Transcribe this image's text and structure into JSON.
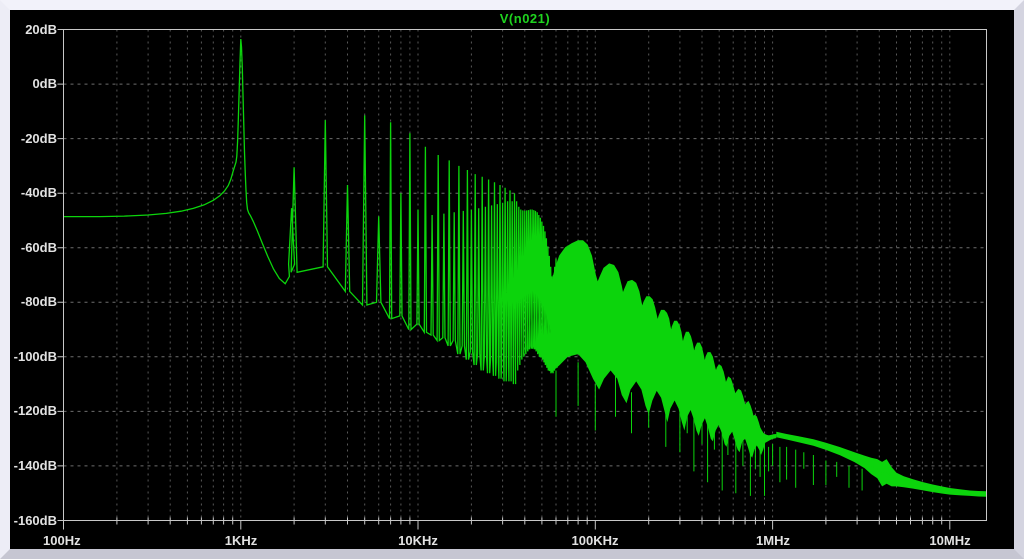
{
  "window": {
    "app": "waveform-viewer"
  },
  "colors": {
    "trace_green": "#0cd40c",
    "title_green": "#1fd31f",
    "background": "#000000",
    "grid_minor": "#585858",
    "grid_major": "#6e6e6e",
    "axis": "#c8c8c8",
    "label_text": "#e2e2e2",
    "frame": "#e9e9f3"
  },
  "chart_data": {
    "type": "line",
    "title": "V(n021)",
    "x_scale": "log",
    "x_range_hz": [
      100,
      16100000
    ],
    "y_range_db": [
      -160,
      20
    ],
    "x_tick_labels": [
      "100Hz",
      "1KHz",
      "10KHz",
      "100KHz",
      "1MHz",
      "10MHz"
    ],
    "y_tick_labels": [
      "20dB",
      "0dB",
      "-20dB",
      "-40dB",
      "-60dB",
      "-80dB",
      "-100dB",
      "-120dB",
      "-140dB",
      "-160dB"
    ],
    "legend_position": "top-center",
    "grid": "dashed",
    "series": [
      {
        "name": "V(n021)",
        "color": "#0cd40c"
      }
    ],
    "baseline_hz_db": [
      [
        100,
        -48.6
      ],
      [
        160,
        -48.6
      ],
      [
        220,
        -48.4
      ],
      [
        300,
        -48
      ],
      [
        380,
        -47.4
      ],
      [
        460,
        -46.6
      ],
      [
        540,
        -45.6
      ],
      [
        620,
        -44.3
      ],
      [
        700,
        -42.6
      ],
      [
        760,
        -41
      ],
      [
        810,
        -39.2
      ],
      [
        850,
        -37.2
      ],
      [
        880,
        -34.8
      ],
      [
        905,
        -32
      ],
      [
        925,
        -30
      ],
      [
        940,
        -28.6
      ],
      [
        950,
        -26.5
      ],
      [
        960,
        -21
      ],
      [
        970,
        -12
      ],
      [
        980,
        -2
      ],
      [
        990,
        8
      ],
      [
        1000,
        16.5
      ],
      [
        1010,
        13.5
      ],
      [
        1020,
        6
      ],
      [
        1030,
        -4
      ],
      [
        1040,
        -15
      ],
      [
        1050,
        -25
      ],
      [
        1060,
        -33
      ],
      [
        1070,
        -39
      ],
      [
        1080,
        -43.5
      ],
      [
        1092,
        -46
      ],
      [
        1110,
        -47.3
      ],
      [
        1135,
        -48.3
      ],
      [
        1175,
        -50.3
      ],
      [
        1240,
        -53.8
      ],
      [
        1320,
        -58.2
      ],
      [
        1420,
        -63.2
      ],
      [
        1530,
        -67.8
      ],
      [
        1650,
        -71.3
      ],
      [
        1780,
        -73.2
      ],
      [
        1880,
        -70.5
      ]
    ],
    "harmonic_teeth_hz_top_floor": [
      [
        1935,
        -45.5,
        -66
      ],
      [
        2000,
        -30.5,
        -69
      ],
      [
        3000,
        -13.2,
        -67
      ],
      [
        4000,
        -37,
        -76
      ],
      [
        5000,
        -11.5,
        -81
      ],
      [
        6000,
        -48.5,
        -80
      ],
      [
        7000,
        -14,
        -86
      ],
      [
        8000,
        -40,
        -85
      ],
      [
        9000,
        -18,
        -90
      ],
      [
        10000,
        -46,
        -88
      ],
      [
        11000,
        -23,
        -91
      ],
      [
        12000,
        -48,
        -92
      ],
      [
        13000,
        -26,
        -94
      ],
      [
        14000,
        -47.5,
        -93
      ],
      [
        15000,
        -28,
        -96
      ],
      [
        16000,
        -47,
        -94
      ],
      [
        17000,
        -30,
        -99
      ],
      [
        18000,
        -46.5,
        -96
      ],
      [
        19000,
        -31.5,
        -101
      ],
      [
        20000,
        -46,
        -98
      ],
      [
        21000,
        -33,
        -103
      ],
      [
        22000,
        -45.5,
        -99
      ],
      [
        23000,
        -34,
        -105
      ],
      [
        24000,
        -45,
        -100
      ],
      [
        25000,
        -35,
        -106
      ],
      [
        26000,
        -44.5,
        -101
      ],
      [
        27000,
        -36,
        -107
      ],
      [
        28000,
        -44,
        -102
      ],
      [
        29000,
        -37,
        -108
      ],
      [
        30000,
        -43.5,
        -103
      ],
      [
        31000,
        -38,
        -109
      ],
      [
        32000,
        -43,
        -104
      ],
      [
        33000,
        -39,
        -109
      ],
      [
        34000,
        -43,
        -105
      ],
      [
        35000,
        -40,
        -110
      ],
      [
        36000,
        -43,
        -105
      ],
      [
        37000,
        -45,
        -103
      ],
      [
        38000,
        -46,
        -101
      ],
      [
        39000,
        -46.3,
        -100
      ],
      [
        40000,
        -46.5,
        -99
      ],
      [
        41000,
        -46.3,
        -98
      ],
      [
        42000,
        -46.2,
        -97
      ],
      [
        43000,
        -46,
        -97
      ],
      [
        44000,
        -46,
        -96
      ],
      [
        45000,
        -46.2,
        -97
      ],
      [
        46000,
        -46.5,
        -97
      ],
      [
        47000,
        -47,
        -98
      ],
      [
        48000,
        -48,
        -99
      ],
      [
        49000,
        -49,
        -100
      ],
      [
        50000,
        -50.5,
        -100
      ],
      [
        51000,
        -52,
        -101
      ],
      [
        52000,
        -54,
        -102
      ],
      [
        53000,
        -56.5,
        -103
      ],
      [
        54000,
        -59.5,
        -104
      ],
      [
        55000,
        -63,
        -105
      ],
      [
        56000,
        -67,
        -105
      ],
      [
        57000,
        -70.5,
        -106
      ],
      [
        58000,
        -70,
        -105
      ],
      [
        59000,
        -67,
        -104
      ],
      [
        60000,
        -64,
        -104
      ]
    ],
    "noise_band_upper_khz_db": [
      [
        58,
        -70.5
      ],
      [
        60,
        -67
      ],
      [
        63,
        -63
      ],
      [
        68,
        -60
      ],
      [
        74,
        -58.5
      ],
      [
        80,
        -57.5
      ],
      [
        85,
        -57.5
      ],
      [
        90,
        -59
      ],
      [
        95,
        -63
      ],
      [
        100,
        -70
      ],
      [
        103,
        -73
      ],
      [
        106,
        -71
      ],
      [
        112,
        -67.5
      ],
      [
        120,
        -66
      ],
      [
        127,
        -66.5
      ],
      [
        134,
        -69
      ],
      [
        140,
        -74
      ],
      [
        143,
        -77
      ],
      [
        147,
        -75
      ],
      [
        153,
        -72.5
      ],
      [
        161,
        -72
      ],
      [
        169,
        -73
      ],
      [
        176,
        -76
      ],
      [
        181,
        -80
      ],
      [
        184,
        -82
      ],
      [
        188,
        -80
      ],
      [
        195,
        -78
      ],
      [
        202,
        -78
      ],
      [
        209,
        -79
      ],
      [
        216,
        -82
      ],
      [
        221,
        -85
      ],
      [
        225,
        -87
      ],
      [
        229,
        -85
      ],
      [
        236,
        -83
      ],
      [
        244,
        -83
      ],
      [
        252,
        -84
      ],
      [
        259,
        -86
      ],
      [
        264,
        -89
      ],
      [
        268,
        -91
      ],
      [
        272,
        -89
      ],
      [
        280,
        -87
      ],
      [
        288,
        -87
      ],
      [
        297,
        -88.5
      ],
      [
        304,
        -91
      ],
      [
        309,
        -94
      ],
      [
        313,
        -95
      ],
      [
        318,
        -93
      ],
      [
        326,
        -91
      ],
      [
        335,
        -91
      ],
      [
        344,
        -92.5
      ],
      [
        352,
        -95
      ],
      [
        358,
        -97.5
      ],
      [
        362,
        -98.5
      ],
      [
        368,
        -96.5
      ],
      [
        377,
        -95
      ],
      [
        387,
        -95
      ],
      [
        397,
        -96.5
      ],
      [
        405,
        -99
      ],
      [
        411,
        -101
      ],
      [
        416,
        -102
      ],
      [
        422,
        -100
      ],
      [
        432,
        -98.5
      ],
      [
        444,
        -98.5
      ],
      [
        457,
        -100
      ],
      [
        467,
        -102.5
      ],
      [
        474,
        -104.5
      ],
      [
        480,
        -105.5
      ],
      [
        488,
        -104
      ],
      [
        499,
        -103
      ],
      [
        512,
        -103.5
      ],
      [
        526,
        -105.5
      ],
      [
        537,
        -108
      ],
      [
        545,
        -110
      ],
      [
        552,
        -109
      ],
      [
        564,
        -107.5
      ],
      [
        578,
        -108
      ],
      [
        592,
        -110
      ],
      [
        607,
        -112.5
      ],
      [
        617,
        -114
      ],
      [
        627,
        -113
      ],
      [
        642,
        -112
      ],
      [
        660,
        -112.5
      ],
      [
        677,
        -114.5
      ],
      [
        692,
        -117
      ],
      [
        702,
        -118
      ],
      [
        714,
        -117
      ],
      [
        730,
        -116.5
      ],
      [
        747,
        -118
      ],
      [
        764,
        -120
      ],
      [
        777,
        -122
      ],
      [
        792,
        -121.5
      ],
      [
        810,
        -122
      ],
      [
        830,
        -124
      ],
      [
        847,
        -126
      ],
      [
        864,
        -127
      ],
      [
        882,
        -128
      ],
      [
        902,
        -128.5
      ],
      [
        927,
        -128.8
      ],
      [
        952,
        -129
      ],
      [
        982,
        -128.8
      ],
      [
        1012,
        -128.6
      ],
      [
        1050,
        -128.5
      ]
    ],
    "noise_band_lower_khz_db": [
      [
        58,
        -105
      ],
      [
        63,
        -103
      ],
      [
        70,
        -100
      ],
      [
        80,
        -99
      ],
      [
        88,
        -102
      ],
      [
        97,
        -108
      ],
      [
        105,
        -112
      ],
      [
        112,
        -108
      ],
      [
        122,
        -105
      ],
      [
        133,
        -108
      ],
      [
        141,
        -114
      ],
      [
        150,
        -117
      ],
      [
        158,
        -112
      ],
      [
        170,
        -109
      ],
      [
        182,
        -112
      ],
      [
        192,
        -118
      ],
      [
        200,
        -121
      ],
      [
        210,
        -116
      ],
      [
        222,
        -112.5
      ],
      [
        235,
        -115
      ],
      [
        246,
        -120
      ],
      [
        255,
        -124
      ],
      [
        265,
        -119
      ],
      [
        280,
        -116
      ],
      [
        295,
        -119
      ],
      [
        308,
        -124
      ],
      [
        318,
        -127
      ],
      [
        330,
        -122
      ],
      [
        345,
        -119.5
      ],
      [
        360,
        -123
      ],
      [
        372,
        -127
      ],
      [
        383,
        -129
      ],
      [
        398,
        -125
      ],
      [
        415,
        -122.5
      ],
      [
        432,
        -126
      ],
      [
        448,
        -130
      ],
      [
        460,
        -131
      ],
      [
        478,
        -127
      ],
      [
        497,
        -125
      ],
      [
        518,
        -128
      ],
      [
        536,
        -132
      ],
      [
        550,
        -133
      ],
      [
        570,
        -129
      ],
      [
        592,
        -127.5
      ],
      [
        615,
        -131
      ],
      [
        635,
        -134
      ],
      [
        652,
        -135
      ],
      [
        675,
        -131
      ],
      [
        700,
        -130
      ],
      [
        725,
        -133
      ],
      [
        748,
        -136
      ],
      [
        768,
        -137
      ],
      [
        790,
        -134
      ],
      [
        815,
        -132.5
      ],
      [
        840,
        -134
      ],
      [
        862,
        -136
      ],
      [
        885,
        -134
      ],
      [
        910,
        -131.5
      ],
      [
        940,
        -131
      ],
      [
        970,
        -130.5
      ],
      [
        1010,
        -130
      ],
      [
        1050,
        -129.8
      ]
    ],
    "hair_spikes_hz_db1_db2": [
      [
        60000,
        -105,
        -122
      ],
      [
        80000,
        -102,
        -118
      ],
      [
        100000,
        -110,
        -127
      ],
      [
        130000,
        -107,
        -122
      ],
      [
        160000,
        -113,
        -128
      ],
      [
        200000,
        -110,
        -126
      ],
      [
        250000,
        -117,
        -133
      ],
      [
        300000,
        -113,
        -135
      ],
      [
        330000,
        -116,
        -128
      ],
      [
        360000,
        -121,
        -142
      ],
      [
        400000,
        -119,
        -132
      ],
      [
        430000,
        -120,
        -146
      ],
      [
        470000,
        -122,
        -134
      ],
      [
        520000,
        -125,
        -149
      ],
      [
        560000,
        -123,
        -136
      ],
      [
        620000,
        -126,
        -150
      ],
      [
        680000,
        -128,
        -140
      ],
      [
        750000,
        -129,
        -151
      ],
      [
        800000,
        -131,
        -141
      ],
      [
        850000,
        -130,
        -144
      ],
      [
        900000,
        -132,
        -151
      ],
      [
        950000,
        -133,
        -142
      ],
      [
        1000000,
        -132,
        -140
      ],
      [
        1100000,
        -133,
        -146
      ],
      [
        1200000,
        -133,
        -145
      ],
      [
        1350000,
        -134,
        -148
      ],
      [
        1500000,
        -135,
        -141
      ],
      [
        1700000,
        -136,
        -147
      ],
      [
        2000000,
        -138,
        -147
      ],
      [
        2300000,
        -138.5,
        -144
      ],
      [
        2700000,
        -140,
        -148
      ],
      [
        3200000,
        -141,
        -149
      ]
    ],
    "tail_hz_db_halfwidth": [
      [
        1050000,
        -128.5,
        1
      ],
      [
        1200000,
        -129.3,
        1
      ],
      [
        1400000,
        -130.2,
        1.1
      ],
      [
        1700000,
        -131.4,
        1.2
      ],
      [
        2000000,
        -132.8,
        1.3
      ],
      [
        2400000,
        -134.6,
        1.5
      ],
      [
        2900000,
        -136.8,
        1.8
      ],
      [
        3300000,
        -138.5,
        2.3
      ],
      [
        3600000,
        -140,
        3
      ],
      [
        3900000,
        -141,
        3.5
      ],
      [
        4150000,
        -143,
        4.5
      ],
      [
        4400000,
        -142,
        4.5
      ],
      [
        4700000,
        -144,
        3.5
      ],
      [
        5000000,
        -145,
        2.5
      ],
      [
        5500000,
        -145.8,
        2
      ],
      [
        6200000,
        -146.6,
        1.7
      ],
      [
        7000000,
        -147.4,
        1.5
      ],
      [
        8000000,
        -148.2,
        1.4
      ],
      [
        9000000,
        -148.8,
        1.3
      ],
      [
        10000000,
        -149.3,
        1.2
      ],
      [
        11500000,
        -149.7,
        1.1
      ],
      [
        13000000,
        -150,
        1
      ],
      [
        14500000,
        -150.2,
        1
      ],
      [
        16100000,
        -150.3,
        1
      ]
    ]
  }
}
